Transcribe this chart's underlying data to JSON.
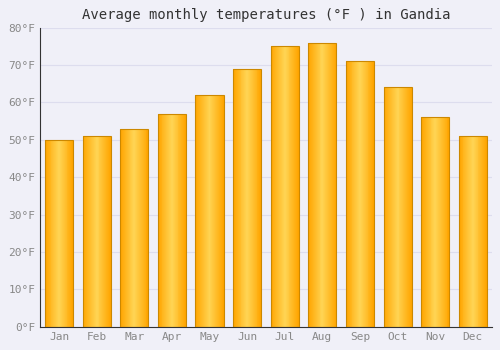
{
  "months": [
    "Jan",
    "Feb",
    "Mar",
    "Apr",
    "May",
    "Jun",
    "Jul",
    "Aug",
    "Sep",
    "Oct",
    "Nov",
    "Dec"
  ],
  "values": [
    50,
    51,
    53,
    57,
    62,
    69,
    75,
    76,
    71,
    64,
    56,
    51
  ],
  "bar_color_light": "#FFD060",
  "bar_color_dark": "#FFA500",
  "bar_edge_color": "#CC8800",
  "title": "Average monthly temperatures (°F ) in Gandia",
  "ylim": [
    0,
    80
  ],
  "yticks": [
    0,
    10,
    20,
    30,
    40,
    50,
    60,
    70,
    80
  ],
  "ytick_labels": [
    "0°F",
    "10°F",
    "20°F",
    "30°F",
    "40°F",
    "50°F",
    "60°F",
    "70°F",
    "80°F"
  ],
  "background_color": "#F0F0F8",
  "plot_bg_color": "#F0F0F8",
  "grid_color": "#DDDDEE",
  "title_fontsize": 10,
  "tick_fontsize": 8,
  "tick_color": "#888888",
  "spine_color": "#333333"
}
